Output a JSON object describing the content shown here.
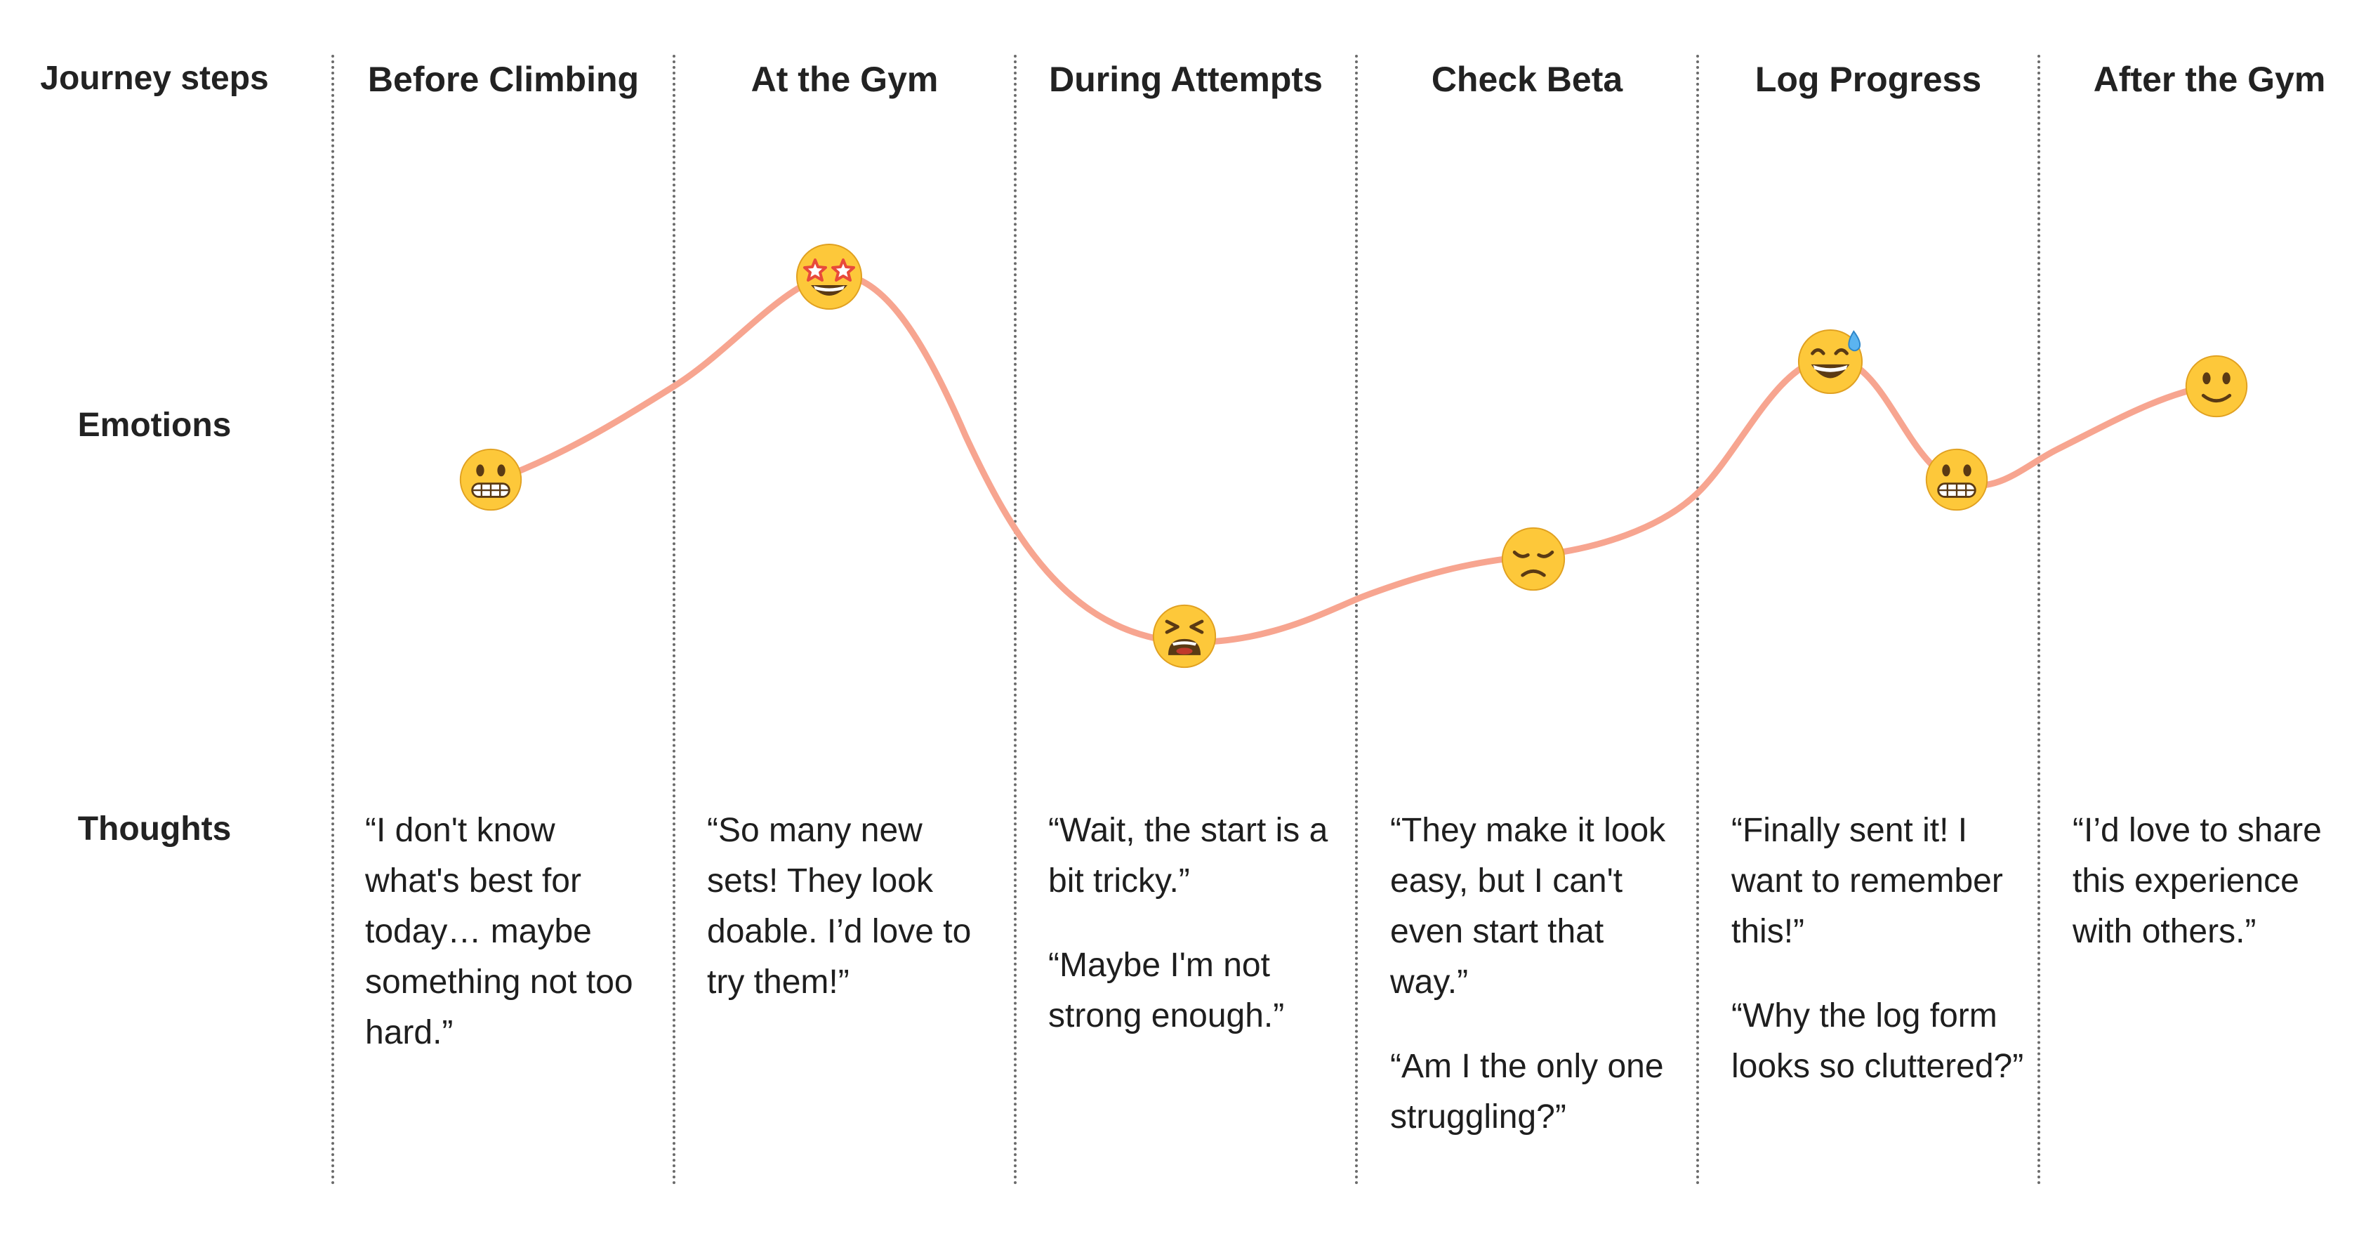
{
  "row_labels": {
    "journey_steps": "Journey steps",
    "emotions": "Emotions",
    "thoughts": "Thoughts"
  },
  "steps": [
    {
      "title": "Before Climbing",
      "thoughts": [
        "“I don't know what's best for today… maybe something not too hard.”"
      ]
    },
    {
      "title": "At the Gym",
      "thoughts": [
        "“So many new sets! They look doable. I’d love to try them!”"
      ]
    },
    {
      "title": "During Attempts",
      "thoughts": [
        "“Wait, the start is a bit tricky.”",
        "“Maybe I'm not strong enough.”"
      ]
    },
    {
      "title": "Check Beta",
      "thoughts": [
        "“They make it look easy, but I can't even start that way.”",
        "“Am I the only one struggling?”"
      ]
    },
    {
      "title": "Log Progress",
      "thoughts": [
        "“Finally sent it! I want to remember this!”",
        "“Why the log form looks so cluttered?”"
      ]
    },
    {
      "title": "After the Gym",
      "thoughts": [
        "“I’d love to share this experience with others.”"
      ]
    }
  ],
  "emotion_points": [
    {
      "emoji": "grimacing-face-emoji"
    },
    {
      "emoji": "star-struck-face-emoji"
    },
    {
      "emoji": "tired-face-emoji"
    },
    {
      "emoji": "disappointed-face-emoji"
    },
    {
      "emoji": "grinning-sweat-face-emoji"
    },
    {
      "emoji": "grimacing-face-emoji"
    },
    {
      "emoji": "slightly-smiling-face-emoji"
    }
  ],
  "colors": {
    "curve": "#F7A590",
    "emoji_face": "#FDC83A",
    "separator": "#6b6b6b"
  }
}
